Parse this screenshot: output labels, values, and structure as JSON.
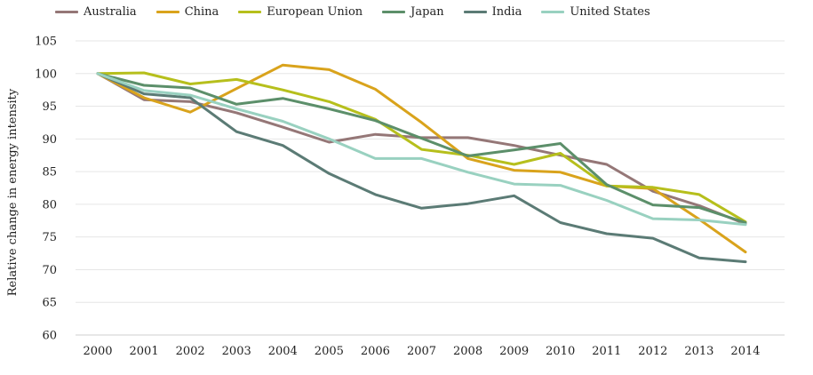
{
  "chart_data": {
    "type": "line",
    "title": "",
    "xlabel": "",
    "ylabel": "Relative change in energy intensity",
    "ylim": [
      60,
      105
    ],
    "yticks": [
      60,
      65,
      70,
      75,
      80,
      85,
      90,
      95,
      100,
      105
    ],
    "grid": true,
    "legend_position": "top",
    "x": [
      "2000",
      "2001",
      "2002",
      "2003",
      "2004",
      "2005",
      "2006",
      "2007",
      "2008",
      "2009",
      "2010",
      "2011",
      "2012",
      "2013",
      "2014"
    ],
    "series": [
      {
        "name": "Australia",
        "color": "#957777",
        "values": [
          100,
          96.0,
          95.7,
          94.0,
          91.8,
          89.5,
          90.7,
          90.2,
          90.2,
          89.0,
          87.5,
          86.1,
          82.0,
          79.8,
          77.0
        ]
      },
      {
        "name": "China",
        "color": "#d9a31c",
        "values": [
          100,
          96.3,
          94.1,
          97.7,
          101.3,
          100.6,
          97.6,
          92.5,
          87.0,
          85.2,
          84.9,
          82.8,
          82.4,
          77.7,
          72.7
        ]
      },
      {
        "name": "European Union",
        "color": "#b6bf1c",
        "values": [
          100,
          100.1,
          98.4,
          99.1,
          97.5,
          95.7,
          93.0,
          88.4,
          87.5,
          86.1,
          87.8,
          82.8,
          82.6,
          81.5,
          77.3
        ]
      },
      {
        "name": "Japan",
        "color": "#5c8f6a",
        "values": [
          100,
          98.2,
          97.8,
          95.3,
          96.2,
          94.6,
          92.8,
          90.1,
          87.4,
          88.3,
          89.3,
          83.0,
          79.9,
          79.5,
          77.2
        ]
      },
      {
        "name": "India",
        "color": "#5b7b75",
        "values": [
          100,
          96.9,
          96.3,
          91.1,
          89.0,
          84.7,
          81.5,
          79.4,
          80.1,
          81.3,
          77.2,
          75.5,
          74.8,
          71.8,
          71.2
        ]
      },
      {
        "name": "United States",
        "color": "#99d1c0",
        "values": [
          100,
          97.4,
          96.7,
          94.6,
          92.7,
          90.0,
          87.0,
          87.0,
          84.9,
          83.1,
          82.9,
          80.6,
          77.8,
          77.6,
          76.9
        ]
      }
    ]
  }
}
